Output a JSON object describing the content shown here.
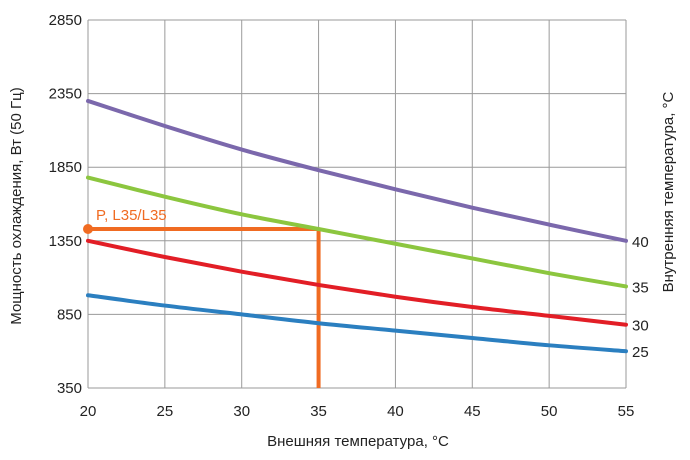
{
  "chart_data": {
    "type": "line",
    "title": "",
    "xlabel": "Внешняя температура, °C",
    "ylabel": "Мощность охлаждения, Вт (50 Гц)",
    "right_label": "Внутренняя температура, °C",
    "xlim": [
      20,
      55
    ],
    "ylim": [
      350,
      2850
    ],
    "xticks": [
      20,
      25,
      30,
      35,
      40,
      45,
      50,
      55
    ],
    "yticks": [
      350,
      850,
      1350,
      1850,
      2350,
      2850
    ],
    "grid": true,
    "series": [
      {
        "name": "40",
        "color": "#7b68ac",
        "x": [
          20,
          25,
          30,
          35,
          40,
          45,
          50,
          55
        ],
        "y": [
          2300,
          2130,
          1970,
          1830,
          1700,
          1575,
          1460,
          1350
        ]
      },
      {
        "name": "35",
        "color": "#8cc63f",
        "x": [
          20,
          25,
          30,
          35,
          40,
          45,
          50,
          55
        ],
        "y": [
          1780,
          1650,
          1530,
          1430,
          1330,
          1230,
          1130,
          1040
        ]
      },
      {
        "name": "30",
        "color": "#e21e26",
        "x": [
          20,
          25,
          30,
          35,
          40,
          45,
          50,
          55
        ],
        "y": [
          1350,
          1240,
          1140,
          1050,
          970,
          900,
          840,
          780
        ]
      },
      {
        "name": "25",
        "color": "#2b7fc0",
        "x": [
          20,
          25,
          30,
          35,
          40,
          45,
          50,
          55
        ],
        "y": [
          980,
          910,
          850,
          790,
          740,
          690,
          640,
          600
        ]
      }
    ],
    "marker": {
      "label": "P, L35/L35",
      "x": 35,
      "y": 1430,
      "color": "#f06b22"
    }
  }
}
